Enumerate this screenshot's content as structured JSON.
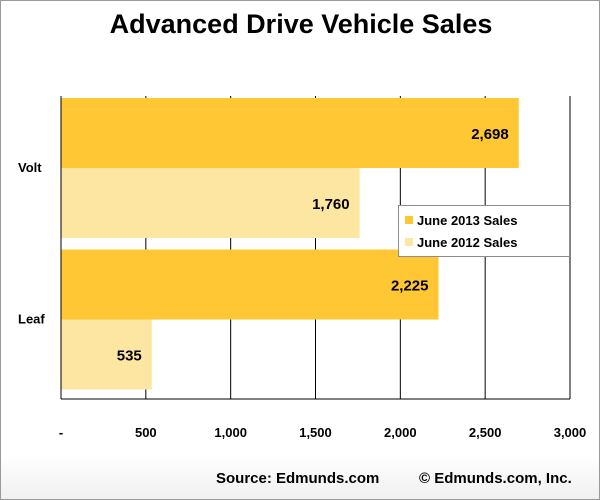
{
  "chart_data": {
    "type": "bar",
    "orientation": "horizontal",
    "title": "Advanced Drive Vehicle Sales",
    "categories": [
      "Volt",
      "Leaf"
    ],
    "series": [
      {
        "name": "June 2013 Sales",
        "values": [
          2698,
          2225
        ],
        "color": "#fec733"
      },
      {
        "name": "June 2012 Sales",
        "values": [
          1760,
          535
        ],
        "color": "#fde6a1"
      }
    ],
    "data_labels": [
      [
        "2,698",
        "2,225"
      ],
      [
        "1,760",
        "535"
      ]
    ],
    "xlim": [
      0,
      3000
    ],
    "xticks": [
      0,
      500,
      1000,
      1500,
      2000,
      2500,
      3000
    ],
    "xtick_labels": [
      "-",
      "500",
      "1,000",
      "1,500",
      "2,000",
      "2,500",
      "3,000"
    ],
    "grid": "vertical",
    "legend_position": "right"
  },
  "footer": {
    "source": "Source: Edmunds.com",
    "copyright": "© Edmunds.com, Inc."
  }
}
